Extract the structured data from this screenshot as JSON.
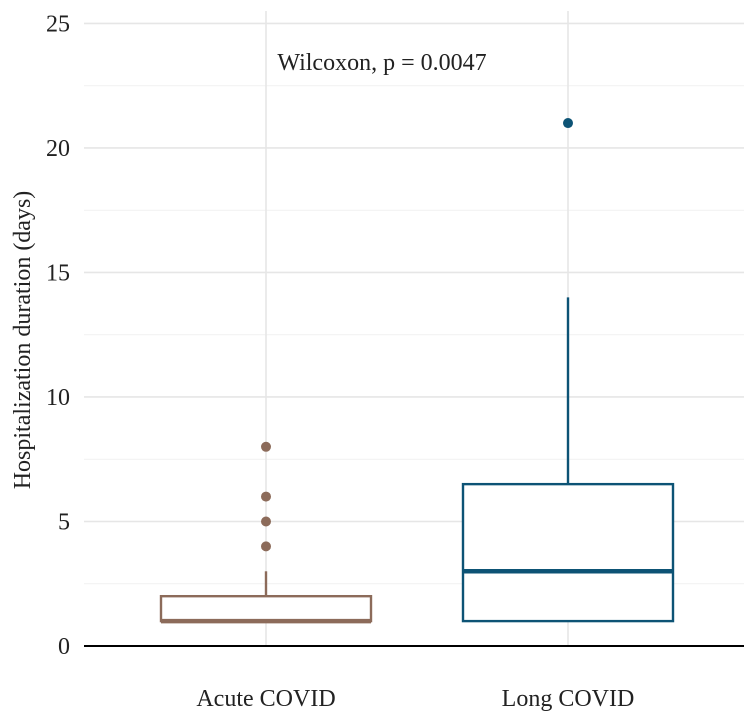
{
  "chart_data": {
    "type": "boxplot",
    "title": "",
    "xlabel": "",
    "ylabel": "Hospitalization duration (days)",
    "ylim": [
      0,
      25.5
    ],
    "yticks": [
      0,
      5,
      10,
      15,
      20,
      25
    ],
    "grid": true,
    "legend": "none",
    "annotation": "Wilcoxon, p = 0.0047",
    "categories": [
      "Acute COVID",
      "Long COVID"
    ],
    "series": [
      {
        "category": "Acute COVID",
        "color": "#8c6b5a",
        "whisker_low": 1,
        "q1": 1,
        "median": 1,
        "q3": 2,
        "whisker_high": 3,
        "outliers": [
          4,
          5,
          6,
          8
        ]
      },
      {
        "category": "Long COVID",
        "color": "#0d5375",
        "whisker_low": 1,
        "q1": 1,
        "median": 3,
        "q3": 6.5,
        "whisker_high": 14,
        "outliers": [
          21
        ]
      }
    ]
  }
}
